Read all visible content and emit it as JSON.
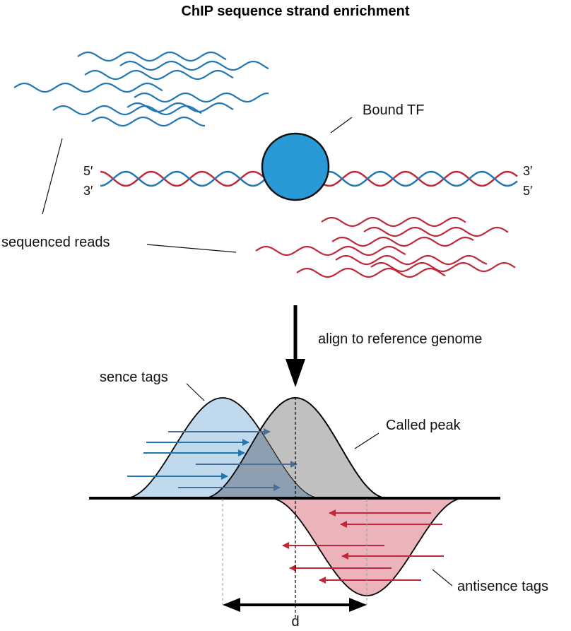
{
  "title": "ChIP sequence strand enrichment",
  "labels": {
    "bound_tf": "Bound TF",
    "sequenced_reads": "sequenced reads",
    "align_step": "align to reference genome",
    "sense_tags": "sence tags",
    "called_peak": "Called peak",
    "antisense_tags": "antisence tags",
    "distance": "d",
    "top_strand_5": "5′",
    "bottom_strand_3": "3′",
    "right_top_3": "3′",
    "right_bottom_5": "5′"
  },
  "colors": {
    "sense": "#1f77b4",
    "antisense": "#c0283a",
    "tf_fill": "#2a9ad6",
    "sense_fill": "#b5d2ea",
    "antisense_fill": "#ebb3ba",
    "peak_fill": "#c0c0c0"
  }
}
